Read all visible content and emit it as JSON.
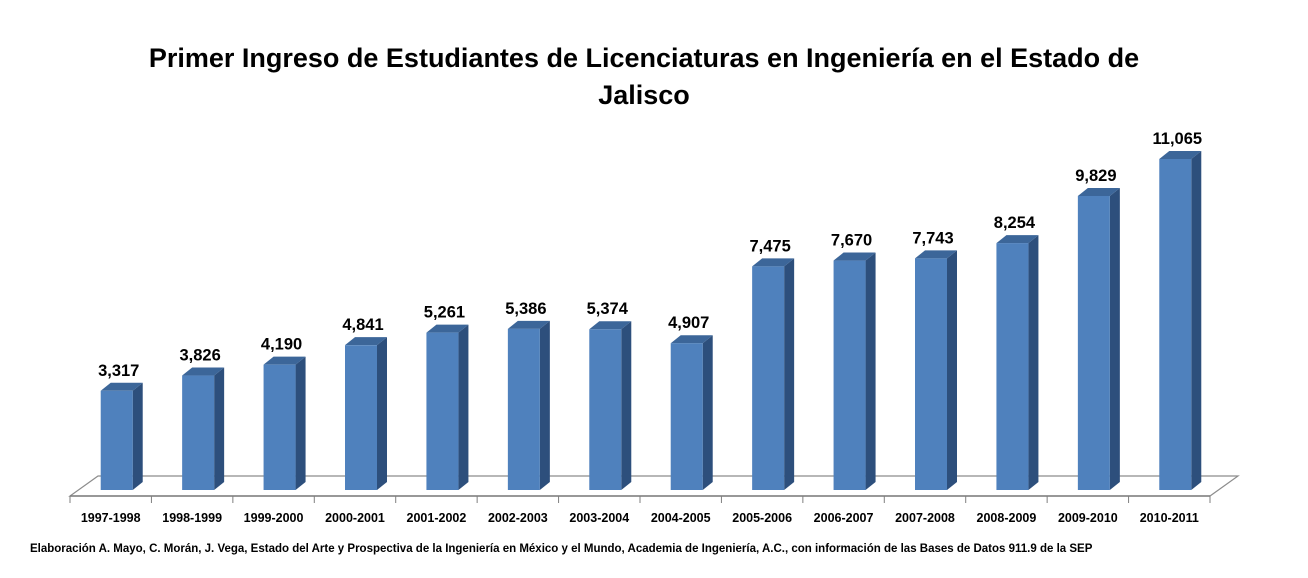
{
  "title_line1": "Primer Ingreso de Estudiantes de Licenciaturas en Ingeniería en el Estado de",
  "title_line2": "Jalisco",
  "source": "Elaboración A. Mayo, C. Morán, J. Vega, Estado del Arte y Prospectiva de la Ingeniería en México y el Mundo, Academia de Ingeniería, A.C., con información de las Bases de Datos  911.9  de la SEP",
  "chart_data": {
    "type": "bar",
    "title": "Primer Ingreso de Estudiantes de Licenciaturas en Ingeniería en el Estado de Jalisco",
    "xlabel": "",
    "ylabel": "",
    "categories": [
      "1997-1998",
      "1998-1999",
      "1999-2000",
      "2000-2001",
      "2001-2002",
      "2002-2003",
      "2003-2004",
      "2004-2005",
      "2005-2006",
      "2006-2007",
      "2007-2008",
      "2008-2009",
      "2009-2010",
      "2010-2011"
    ],
    "values": [
      3317,
      3826,
      4190,
      4841,
      5261,
      5386,
      5374,
      4907,
      7475,
      7670,
      7743,
      8254,
      9829,
      11065
    ],
    "data_labels": [
      "3,317",
      "3,826",
      "4,190",
      "4,841",
      "5,261",
      "5,386",
      "5,374",
      "4,907",
      "7,475",
      "7,670",
      "7,743",
      "8,254",
      "9,829",
      "11,065"
    ],
    "ylim": [
      0,
      11065
    ],
    "grid": false,
    "legend": "none",
    "style": "3d-column",
    "colors": {
      "front": "#4f81bd",
      "side": "#2d4f7c",
      "top": "#3c6699"
    }
  }
}
